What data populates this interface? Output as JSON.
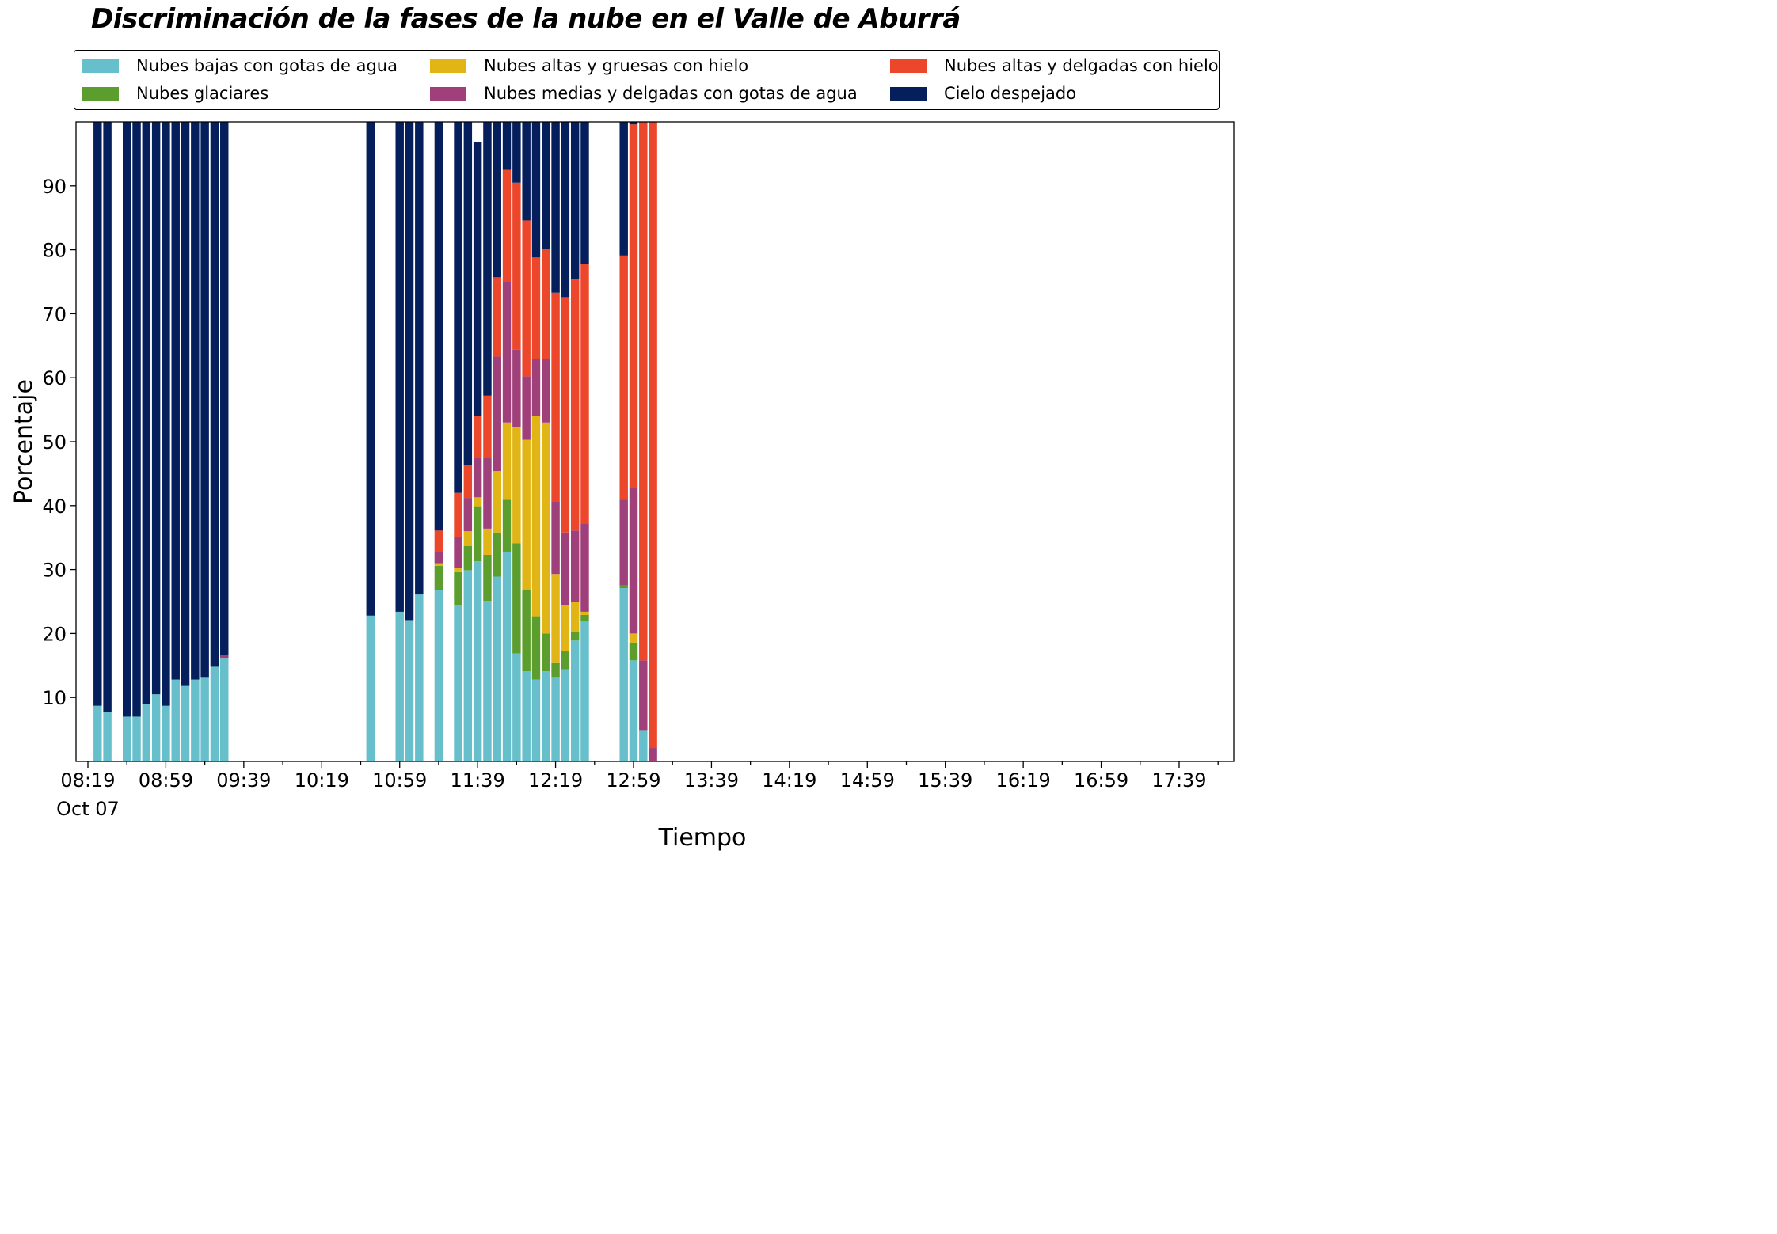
{
  "chart_data": {
    "type": "bar",
    "stacked": true,
    "title": "Discriminación de la fases de la nube en el Valle de Aburrá",
    "xlabel": "Tiempo",
    "ylabel": "Porcentaje",
    "ylim": [
      0,
      100
    ],
    "grid": false,
    "legend_position": "top",
    "x_tick_labels": [
      "08:19",
      "08:59",
      "09:39",
      "10:19",
      "10:59",
      "11:39",
      "12:19",
      "12:59",
      "13:39",
      "14:19",
      "14:59",
      "15:39",
      "16:19",
      "16:59",
      "17:39"
    ],
    "x_tick_sublabel": "Oct 07",
    "y_ticks": [
      10,
      20,
      30,
      40,
      50,
      60,
      70,
      80,
      90
    ],
    "categories": [
      "08:24",
      "08:29",
      "08:39",
      "08:44",
      "08:49",
      "08:54",
      "08:59",
      "09:04",
      "09:09",
      "09:14",
      "09:19",
      "09:24",
      "09:29",
      "10:44",
      "10:59",
      "11:04",
      "11:09",
      "11:19",
      "11:29",
      "11:34",
      "11:39",
      "11:44",
      "11:49",
      "11:54",
      "11:59",
      "12:04",
      "12:09",
      "12:14",
      "12:19",
      "12:24",
      "12:29",
      "12:34",
      "12:54",
      "12:59",
      "13:04",
      "13:09",
      "13:14",
      "14:19",
      "14:24",
      "14:29"
    ],
    "series": [
      {
        "name": "Nubes bajas con gotas de agua",
        "color": "#66bfca",
        "values": [
          8.7,
          7.7,
          7.0,
          7.0,
          9.0,
          10.5,
          8.7,
          12.8,
          11.8,
          12.8,
          13.2,
          14.8,
          16.2,
          22.8,
          23.4,
          22.1,
          26.1,
          26.8,
          24.5,
          29.9,
          31.3,
          25.1,
          28.9,
          32.8,
          16.9,
          14.1,
          12.8,
          14.1,
          13.2,
          14.4,
          18.9,
          22.0,
          27.1,
          15.8,
          4.9,
          0.0,
          0.0,
          0.0,
          0.0,
          0.0
        ]
      },
      {
        "name": "Nubes glaciares",
        "color": "#5c9e2e",
        "values": [
          0,
          0,
          0,
          0,
          0,
          0,
          0,
          0,
          0,
          0,
          0,
          0,
          0,
          0,
          0,
          0,
          0,
          3.8,
          5.1,
          3.8,
          8.6,
          7.2,
          6.9,
          8.1,
          17.2,
          12.8,
          9.9,
          5.9,
          2.3,
          2.8,
          1.4,
          0.9,
          0.4,
          2.8,
          0,
          0,
          0,
          0,
          0,
          0
        ]
      },
      {
        "name": "Nubes altas y gruesas con hielo",
        "color": "#e1b515",
        "values": [
          0,
          0,
          0,
          0,
          0,
          0,
          0,
          0,
          0,
          0,
          0,
          0,
          0,
          0,
          0,
          0,
          0,
          0.4,
          0.6,
          2.3,
          1.4,
          4.1,
          9.6,
          12.1,
          18.2,
          23.4,
          31.3,
          33.0,
          13.8,
          7.3,
          4.7,
          0.5,
          0,
          1.4,
          0,
          0,
          0,
          0,
          0,
          0
        ]
      },
      {
        "name": "Nubes medias y delgadas con gotas de agua",
        "color": "#a0407a",
        "values": [
          0,
          0,
          0,
          0,
          0,
          0,
          0,
          0,
          0,
          0,
          0,
          0,
          0.4,
          0,
          0,
          0,
          0,
          1.7,
          4.9,
          5.2,
          6.1,
          11.1,
          17.9,
          22.0,
          12.1,
          9.9,
          8.9,
          9.9,
          11.4,
          11.3,
          11.1,
          13.8,
          13.4,
          22.7,
          10.9,
          2.1,
          0,
          0,
          0,
          0
        ]
      },
      {
        "name": "Nubes altas y delgadas con hielo",
        "color": "#ec472a",
        "values": [
          0,
          0,
          0,
          0,
          0,
          0,
          0,
          0,
          0,
          0,
          0,
          0,
          0,
          0,
          0,
          0,
          0,
          3.4,
          6.9,
          5.2,
          6.6,
          9.7,
          12.4,
          17.5,
          26.1,
          24.4,
          15.9,
          17.2,
          32.6,
          36.8,
          39.3,
          40.6,
          38.2,
          56.9,
          84.2,
          97.9,
          0,
          0,
          0,
          0
        ]
      },
      {
        "name": "Cielo despejado",
        "color": "#041f5c",
        "values": [
          91.3,
          92.3,
          93.0,
          93.0,
          91.0,
          89.5,
          91.3,
          87.2,
          88.2,
          87.2,
          86.8,
          85.2,
          83.4,
          77.2,
          76.6,
          77.9,
          73.9,
          63.9,
          58.0,
          53.6,
          42.9,
          42.8,
          24.3,
          7.5,
          9.5,
          15.4,
          21.2,
          19.9,
          26.7,
          27.4,
          24.6,
          22.2,
          20.9,
          0.4,
          0,
          0,
          0,
          0,
          0,
          0
        ]
      }
    ]
  },
  "legend": {
    "items": [
      {
        "label": "Nubes bajas con gotas de agua",
        "color": "#66bfca"
      },
      {
        "label": "Nubes glaciares",
        "color": "#5c9e2e"
      },
      {
        "label": "Nubes altas y gruesas con hielo",
        "color": "#e1b515"
      },
      {
        "label": "Nubes medias y delgadas con gotas de agua",
        "color": "#a0407a"
      },
      {
        "label": "Nubes altas y delgadas con hielo",
        "color": "#ec472a"
      },
      {
        "label": "Cielo despejado",
        "color": "#041f5c"
      }
    ]
  }
}
